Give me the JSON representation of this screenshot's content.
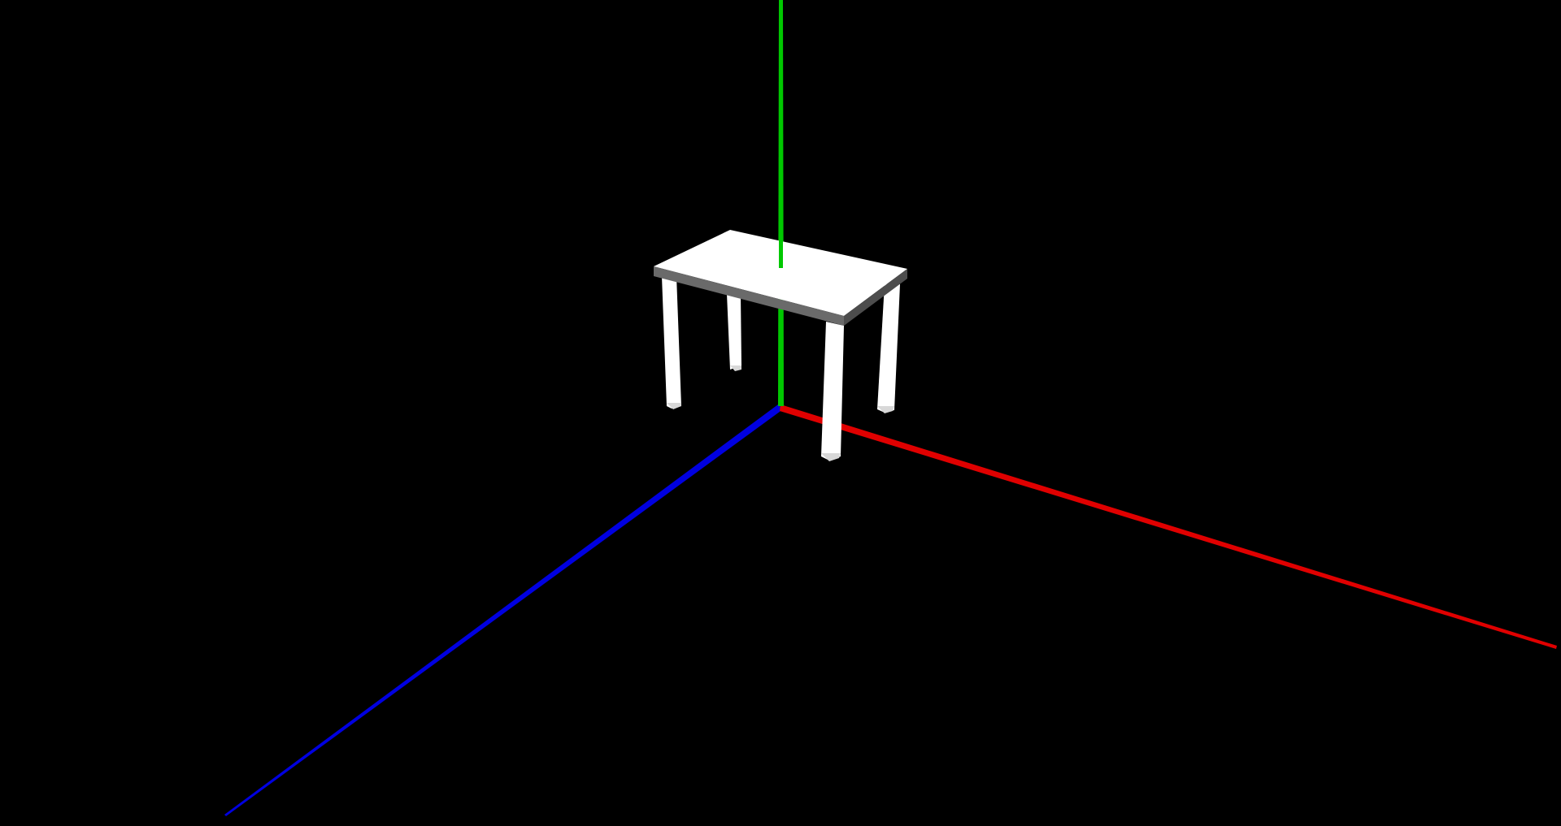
{
  "scene": {
    "background_color": "#000000",
    "axes": {
      "x_axis": {
        "color": "#e00000"
      },
      "y_axis": {
        "color": "#00c800"
      },
      "z_axis": {
        "color": "#0000e0"
      }
    },
    "table": {
      "top_color": "#ffffff",
      "edge_color": "#6a6a6a",
      "leg_color": "#ffffff",
      "leg_shadow_color": "#d8d8d8"
    }
  }
}
